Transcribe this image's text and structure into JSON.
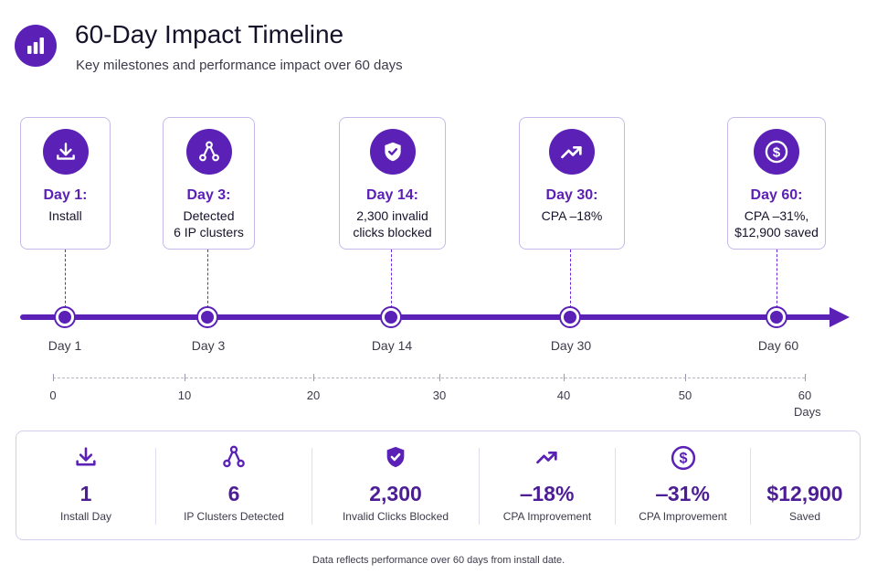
{
  "header": {
    "icon": "bar-chart-icon",
    "title": "60-Day Impact Timeline",
    "subtitle": "Key milestones and performance impact over 60 days"
  },
  "milestones": [
    {
      "icon": "download-icon",
      "day": "Day 1:",
      "desc": [
        "Install"
      ],
      "label": "Day 1",
      "at": 1
    },
    {
      "icon": "network-icon",
      "day": "Day 3:",
      "desc": [
        "Detected",
        "6 IP clusters"
      ],
      "label": "Day 3",
      "at": 3
    },
    {
      "icon": "shield-check-icon",
      "day": "Day 14:",
      "desc": [
        "2,300 invalid",
        "clicks blocked"
      ],
      "label": "Day 14",
      "at": 14
    },
    {
      "icon": "trending-up-icon",
      "day": "Day 30:",
      "desc": [
        "CPA ‒18%"
      ],
      "label": "Day 30",
      "at": 30
    },
    {
      "icon": "dollar-icon",
      "day": "Day 60:",
      "desc": [
        "CPA ‒31%,",
        "$12,900 saved"
      ],
      "label": "Day 60",
      "at": 60
    }
  ],
  "axis": {
    "ticks": [
      "0",
      "10",
      "20",
      "30",
      "40",
      "50",
      "60"
    ],
    "unit": "Days"
  },
  "stats": [
    {
      "icon": "download-icon",
      "value": "1",
      "label": "Install Day"
    },
    {
      "icon": "network-icon",
      "value": "6",
      "label": "IP Clusters Detected"
    },
    {
      "icon": "shield-check-icon",
      "value": "2,300",
      "label": "Invalid Clicks Blocked"
    },
    {
      "icon": "trending-up-icon",
      "value": "‒18%",
      "label": "CPA Improvement"
    },
    {
      "icon": "dollar-icon",
      "value": "‒31%",
      "label": "CPA Improvement"
    },
    {
      "icon": "",
      "value": "$12,900",
      "label": "Saved"
    }
  ],
  "footnote": "Data reflects performance over 60 days from install date.",
  "colors": {
    "accent": "#5b21b6",
    "border": "#c6b9ea"
  }
}
